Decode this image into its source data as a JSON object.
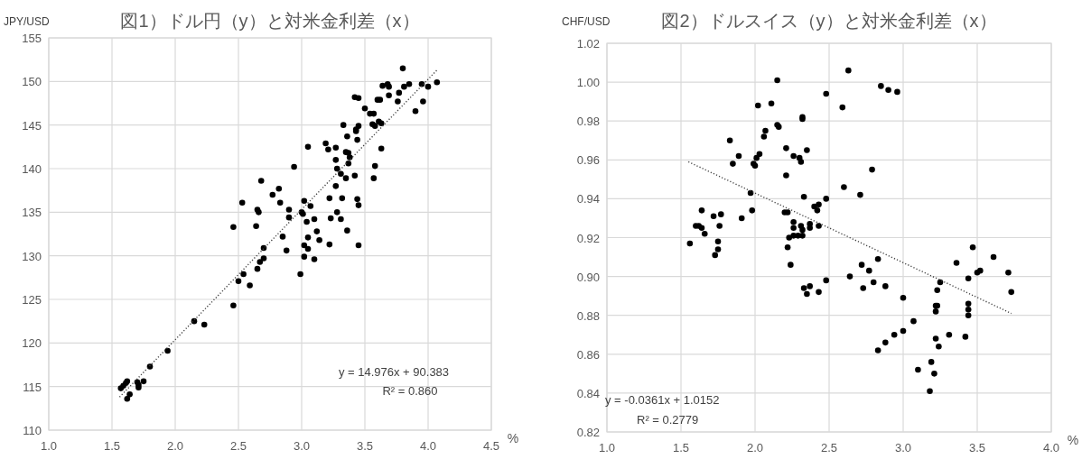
{
  "chart_data": [
    {
      "type": "scatter",
      "title": "図1）ドル円（y）と対米金利差（x）",
      "ylabel": "JPY/USD",
      "xlabel": "%",
      "xlim": [
        1.0,
        4.5
      ],
      "xticks": [
        {
          "value": 1.0,
          "label": "1.0"
        },
        {
          "value": 1.5,
          "label": "1.5"
        },
        {
          "value": 2.0,
          "label": "2.0"
        },
        {
          "value": 2.5,
          "label": "2.5"
        },
        {
          "value": 3.0,
          "label": "3.0"
        },
        {
          "value": 3.5,
          "label": "3.5"
        },
        {
          "value": 4.0,
          "label": "4.0"
        },
        {
          "value": 4.5,
          "label": "4.5"
        }
      ],
      "ylim": [
        110,
        155
      ],
      "yticks": [
        110,
        115,
        120,
        125,
        130,
        135,
        140,
        145,
        150,
        155
      ],
      "grid": true,
      "series": [
        {
          "color": "#000000",
          "marker": "circle",
          "x": [
            3.8,
            3.64,
            3.68,
            3.69,
            3.81,
            3.85,
            3.95,
            4.0,
            4.07,
            3.77,
            3.69,
            3.76,
            3.96,
            3.9,
            3.6,
            3.62,
            3.42,
            3.45,
            3.5,
            3.54,
            3.57,
            3.56,
            3.58,
            3.61,
            3.63,
            3.33,
            3.43,
            3.45,
            3.43,
            3.36,
            3.44,
            3.19,
            3.21,
            3.27,
            3.05,
            3.35,
            3.37,
            3.38,
            3.37,
            3.27,
            3.63,
            3.58,
            3.57,
            3.28,
            3.31,
            3.35,
            3.42,
            3.27,
            2.94,
            2.68,
            2.82,
            2.77,
            2.83,
            2.53,
            2.65,
            2.66,
            2.9,
            2.9,
            2.64,
            2.46,
            3.02,
            3.07,
            3.0,
            3.01,
            3.22,
            3.32,
            3.44,
            3.45,
            3.28,
            3.23,
            3.31,
            3.04,
            3.1,
            2.85,
            3.12,
            3.05,
            3.14,
            3.36,
            3.22,
            3.45,
            3.02,
            3.05,
            2.7,
            2.88,
            3.02,
            3.1,
            2.7,
            2.67,
            2.65,
            2.99,
            2.54,
            2.5,
            2.59,
            2.46,
            2.15,
            2.23,
            1.94,
            1.8,
            1.57,
            1.59,
            1.61,
            1.62,
            1.64,
            1.62,
            1.7,
            1.71,
            1.71,
            1.75
          ],
          "values": [
            151.5,
            149.5,
            149.7,
            149.4,
            149.4,
            149.7,
            149.7,
            149.4,
            149.9,
            148.7,
            148.4,
            147.7,
            147.7,
            146.6,
            147.9,
            147.9,
            148.2,
            148.1,
            146.9,
            146.3,
            146.3,
            145.1,
            144.9,
            145.4,
            145.2,
            145.0,
            144.5,
            144.9,
            144.3,
            143.7,
            143.3,
            142.9,
            142.2,
            142.4,
            142.5,
            141.9,
            141.8,
            141.3,
            140.6,
            141.0,
            142.3,
            140.3,
            138.9,
            140.0,
            139.4,
            138.9,
            139.2,
            138.0,
            140.2,
            138.6,
            137.7,
            137.0,
            136.1,
            136.1,
            135.3,
            135.0,
            135.3,
            134.4,
            133.4,
            133.3,
            136.3,
            135.7,
            135.0,
            134.8,
            136.6,
            136.6,
            136.5,
            135.8,
            135.0,
            134.3,
            134.2,
            133.9,
            134.2,
            132.2,
            132.8,
            132.1,
            131.8,
            132.9,
            131.3,
            131.2,
            131.2,
            130.8,
            130.9,
            130.6,
            129.9,
            129.6,
            129.7,
            129.3,
            128.5,
            127.9,
            127.9,
            127.1,
            126.6,
            124.3,
            122.5,
            122.1,
            119.1,
            117.3,
            114.8,
            115.1,
            115.4,
            115.6,
            114.1,
            113.6,
            115.5,
            115.2,
            114.9,
            115.6
          ]
        },
        {
          "type": "line",
          "color": "#404040",
          "marker": "none",
          "line_style": "dotted",
          "x": [
            1.56,
            4.07
          ],
          "values": [
            113.8,
            151.3
          ]
        }
      ],
      "annotations": [
        "y = 14.976x + 90.383",
        "R² = 0.860"
      ]
    },
    {
      "type": "scatter",
      "title": "図2）ドルスイス（y）と対米金利差（x）",
      "ylabel": "CHF/USD",
      "xlabel": "%",
      "xlim": [
        1.0,
        4.0
      ],
      "xticks": [
        {
          "value": 1.0,
          "label": "1.0"
        },
        {
          "value": 1.5,
          "label": "1.5"
        },
        {
          "value": 2.0,
          "label": "2.0"
        },
        {
          "value": 2.5,
          "label": "2.5"
        },
        {
          "value": 3.0,
          "label": "3.0"
        },
        {
          "value": 3.5,
          "label": "3.5"
        },
        {
          "value": 4.0,
          "label": "4.0"
        }
      ],
      "ylim": [
        0.82,
        1.02
      ],
      "yticks": [
        {
          "value": 0.82,
          "label": "0.82"
        },
        {
          "value": 0.84,
          "label": "0.84"
        },
        {
          "value": 0.86,
          "label": "0.86"
        },
        {
          "value": 0.88,
          "label": "0.88"
        },
        {
          "value": 0.9,
          "label": "0.90"
        },
        {
          "value": 0.92,
          "label": "0.92"
        },
        {
          "value": 0.94,
          "label": "0.94"
        },
        {
          "value": 0.96,
          "label": "0.96"
        },
        {
          "value": 0.98,
          "label": "0.98"
        },
        {
          "value": 1.0,
          "label": "1.00"
        },
        {
          "value": 1.02,
          "label": "1.02"
        }
      ],
      "grid": true,
      "series": [
        {
          "color": "#000000",
          "marker": "circle",
          "x": [
            2.63,
            2.15,
            2.48,
            2.02,
            2.11,
            2.59,
            2.32,
            2.32,
            2.15,
            2.16,
            2.07,
            2.06,
            1.83,
            2.21,
            2.35,
            1.85,
            1.89,
            2.01,
            2.03,
            1.99,
            2.0,
            2.26,
            2.3,
            2.31,
            2.21,
            2.6,
            2.71,
            1.97,
            2.33,
            2.48,
            2.43,
            2.4,
            2.42,
            2.2,
            2.22,
            1.98,
            1.64,
            1.91,
            1.72,
            1.77,
            1.76,
            1.6,
            1.62,
            1.64,
            1.66,
            1.56,
            1.75,
            1.75,
            1.73,
            2.26,
            2.31,
            2.32,
            2.26,
            2.37,
            2.37,
            2.43,
            2.23,
            2.26,
            2.29,
            2.32,
            2.85,
            2.9,
            2.96,
            2.79,
            2.22,
            2.24,
            2.33,
            2.35,
            2.37,
            2.43,
            2.48,
            2.64,
            2.72,
            2.77,
            2.83,
            2.73,
            2.8,
            2.88,
            3.0,
            3.07,
            3.0,
            2.94,
            2.88,
            2.83,
            3.1,
            3.19,
            3.21,
            3.18,
            3.22,
            3.24,
            3.31,
            3.22,
            3.22,
            3.23,
            3.23,
            3.25,
            3.36,
            3.47,
            3.44,
            3.5,
            3.52,
            3.61,
            3.71,
            3.73,
            3.44,
            3.44,
            3.44,
            3.42
          ],
          "values": [
            1.006,
            1.001,
            0.994,
            0.988,
            0.989,
            0.987,
            0.982,
            0.981,
            0.978,
            0.977,
            0.975,
            0.972,
            0.97,
            0.966,
            0.965,
            0.958,
            0.962,
            0.961,
            0.963,
            0.958,
            0.957,
            0.962,
            0.961,
            0.959,
            0.952,
            0.946,
            0.942,
            0.943,
            0.941,
            0.94,
            0.937,
            0.936,
            0.934,
            0.933,
            0.933,
            0.934,
            0.934,
            0.93,
            0.931,
            0.932,
            0.926,
            0.926,
            0.926,
            0.925,
            0.922,
            0.917,
            0.918,
            0.914,
            0.911,
            0.928,
            0.926,
            0.924,
            0.925,
            0.927,
            0.925,
            0.926,
            0.92,
            0.921,
            0.921,
            0.921,
            0.998,
            0.996,
            0.995,
            0.955,
            0.915,
            0.906,
            0.894,
            0.891,
            0.895,
            0.892,
            0.898,
            0.9,
            0.906,
            0.903,
            0.909,
            0.894,
            0.897,
            0.895,
            0.889,
            0.877,
            0.872,
            0.87,
            0.866,
            0.862,
            0.852,
            0.856,
            0.85,
            0.841,
            0.868,
            0.864,
            0.87,
            0.882,
            0.885,
            0.885,
            0.893,
            0.897,
            0.907,
            0.915,
            0.899,
            0.902,
            0.903,
            0.91,
            0.902,
            0.892,
            0.886,
            0.883,
            0.88,
            0.869
          ]
        },
        {
          "type": "line",
          "color": "#404040",
          "marker": "none",
          "line_style": "dotted",
          "x": [
            1.55,
            3.73
          ],
          "values": [
            0.959,
            0.881
          ]
        }
      ],
      "annotations": [
        "y = -0.0361x + 1.0152",
        "R² = 0.2779"
      ]
    }
  ]
}
